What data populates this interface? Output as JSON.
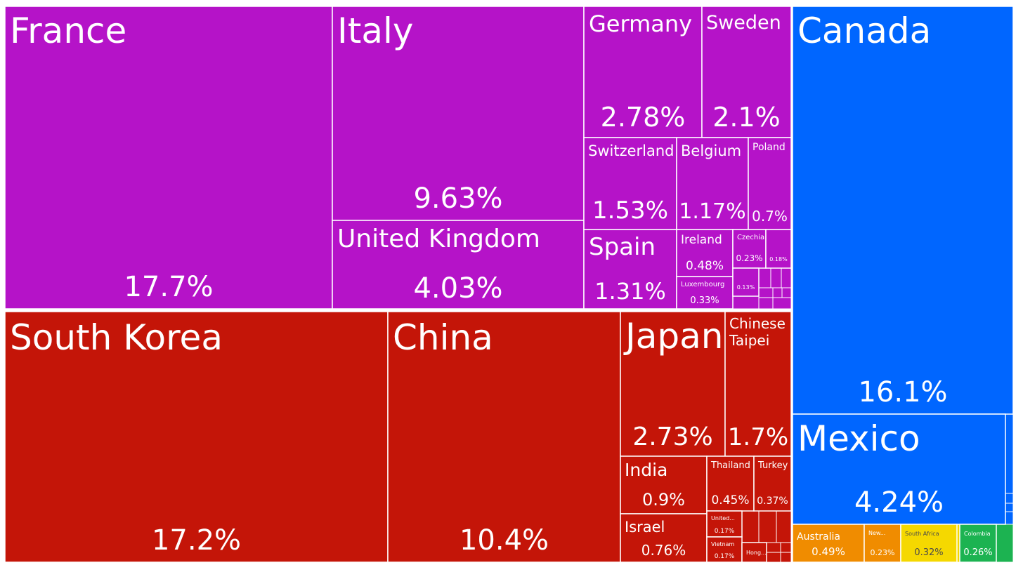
{
  "chart_data": {
    "type": "treemap",
    "colors": {
      "europe": "#B513C8",
      "asia": "#C41508",
      "north_america": "#0066FF",
      "oceania": "#F08C00",
      "africa": "#F5D800",
      "south_america": "#1CB351",
      "border": "#ffffff"
    },
    "items": [
      {
        "id": "france",
        "name": "France",
        "value": "17.7%",
        "group": "europe"
      },
      {
        "id": "italy",
        "name": "Italy",
        "value": "9.63%",
        "group": "europe"
      },
      {
        "id": "germany",
        "name": "Germany",
        "value": "2.78%",
        "group": "europe"
      },
      {
        "id": "sweden",
        "name": "Sweden",
        "value": "2.1%",
        "group": "europe"
      },
      {
        "id": "united-kingdom",
        "name": "United Kingdom",
        "value": "4.03%",
        "group": "europe"
      },
      {
        "id": "switzerland",
        "name": "Switzerland",
        "value": "1.53%",
        "group": "europe"
      },
      {
        "id": "belgium",
        "name": "Belgium",
        "value": "1.17%",
        "group": "europe"
      },
      {
        "id": "poland",
        "name": "Poland",
        "value": "0.7%",
        "group": "europe"
      },
      {
        "id": "spain",
        "name": "Spain",
        "value": "1.31%",
        "group": "europe"
      },
      {
        "id": "ireland",
        "name": "Ireland",
        "value": "0.48%",
        "group": "europe"
      },
      {
        "id": "czechia",
        "name": "Czechia",
        "value": "0.23%",
        "group": "europe"
      },
      {
        "id": "eu-small-1",
        "name": "",
        "value": "0.18%",
        "group": "europe"
      },
      {
        "id": "luxembourg",
        "name": "Luxembourg",
        "value": "0.33%",
        "group": "europe"
      },
      {
        "id": "eu-small-2",
        "name": "",
        "value": "0.13%",
        "group": "europe"
      },
      {
        "id": "south-korea",
        "name": "South Korea",
        "value": "17.2%",
        "group": "asia"
      },
      {
        "id": "china",
        "name": "China",
        "value": "10.4%",
        "group": "asia"
      },
      {
        "id": "japan",
        "name": "Japan",
        "value": "2.73%",
        "group": "asia"
      },
      {
        "id": "chinese-taipei",
        "name": "Chinese Taipei",
        "value": "1.7%",
        "group": "asia"
      },
      {
        "id": "india",
        "name": "India",
        "value": "0.9%",
        "group": "asia"
      },
      {
        "id": "thailand",
        "name": "Thailand",
        "value": "0.45%",
        "group": "asia"
      },
      {
        "id": "turkey",
        "name": "Turkey",
        "value": "0.37%",
        "group": "asia"
      },
      {
        "id": "israel",
        "name": "Israel",
        "value": "0.76%",
        "group": "asia"
      },
      {
        "id": "united-arab",
        "name": "United...",
        "value": "0.17%",
        "group": "asia"
      },
      {
        "id": "vietnam",
        "name": "Vietnam",
        "value": "0.17%",
        "group": "asia"
      },
      {
        "id": "hong-kong",
        "name": "Hong...",
        "value": "",
        "group": "asia"
      },
      {
        "id": "canada",
        "name": "Canada",
        "value": "16.1%",
        "group": "north_america"
      },
      {
        "id": "mexico",
        "name": "Mexico",
        "value": "4.24%",
        "group": "north_america"
      },
      {
        "id": "australia",
        "name": "Australia",
        "value": "0.49%",
        "group": "oceania"
      },
      {
        "id": "new-zealand",
        "name": "New...",
        "value": "0.23%",
        "group": "oceania"
      },
      {
        "id": "south-africa",
        "name": "South Africa",
        "value": "0.32%",
        "group": "africa"
      },
      {
        "id": "colombia",
        "name": "Colombia",
        "value": "0.26%",
        "group": "south_america"
      }
    ]
  }
}
